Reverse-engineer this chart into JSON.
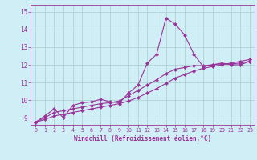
{
  "xlabel": "Windchill (Refroidissement éolien,°C)",
  "background_color": "#d0eef5",
  "plot_color": "#993399",
  "grid_color": "#aacccc",
  "xlim": [
    -0.5,
    23.5
  ],
  "ylim": [
    8.6,
    15.4
  ],
  "yticks": [
    9,
    10,
    11,
    12,
    13,
    14,
    15
  ],
  "xticks": [
    0,
    1,
    2,
    3,
    4,
    5,
    6,
    7,
    8,
    9,
    10,
    11,
    12,
    13,
    14,
    15,
    16,
    17,
    18,
    19,
    20,
    21,
    22,
    23
  ],
  "series1_x": [
    0,
    1,
    2,
    3,
    4,
    5,
    6,
    7,
    8,
    9,
    10,
    11,
    12,
    13,
    14,
    15,
    16,
    17,
    18,
    19,
    20,
    21,
    22,
    23
  ],
  "series1_y": [
    8.75,
    9.1,
    9.5,
    9.0,
    9.7,
    9.85,
    9.9,
    10.05,
    9.9,
    9.85,
    10.4,
    10.85,
    12.1,
    12.6,
    14.65,
    14.3,
    13.7,
    12.6,
    11.9,
    12.0,
    12.1,
    12.0,
    12.0,
    12.2
  ],
  "series2_x": [
    0,
    1,
    2,
    3,
    4,
    5,
    6,
    7,
    8,
    9,
    10,
    11,
    12,
    13,
    14,
    15,
    16,
    17,
    18,
    19,
    20,
    21,
    22,
    23
  ],
  "series2_y": [
    8.75,
    9.0,
    9.3,
    9.4,
    9.5,
    9.6,
    9.7,
    9.8,
    9.85,
    9.95,
    10.25,
    10.55,
    10.85,
    11.15,
    11.5,
    11.75,
    11.85,
    11.95,
    11.95,
    12.0,
    12.05,
    12.05,
    12.1,
    12.2
  ],
  "series3_x": [
    0,
    1,
    2,
    3,
    4,
    5,
    6,
    7,
    8,
    9,
    10,
    11,
    12,
    13,
    14,
    15,
    16,
    17,
    18,
    19,
    20,
    21,
    22,
    23
  ],
  "series3_y": [
    8.75,
    8.9,
    9.1,
    9.2,
    9.3,
    9.4,
    9.5,
    9.6,
    9.7,
    9.8,
    9.95,
    10.15,
    10.4,
    10.65,
    10.95,
    11.25,
    11.45,
    11.65,
    11.8,
    11.9,
    12.0,
    12.1,
    12.2,
    12.3
  ]
}
